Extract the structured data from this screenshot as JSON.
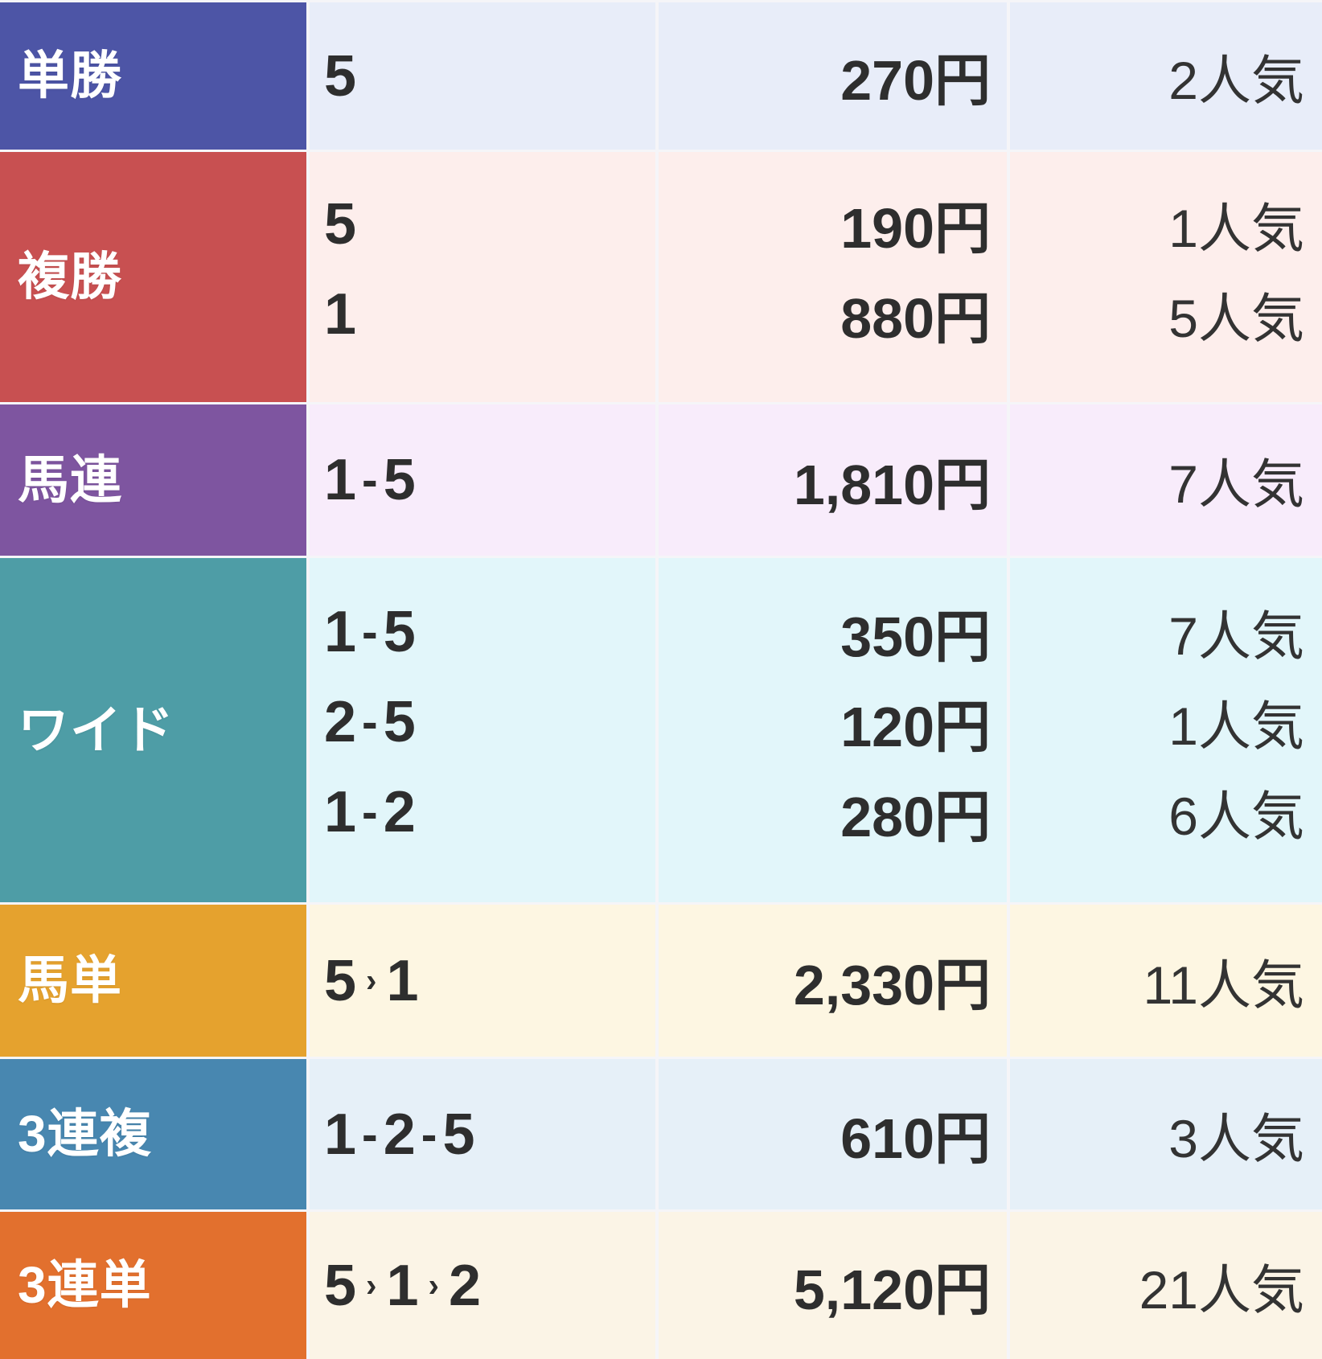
{
  "table": {
    "rows": [
      {
        "type": "単勝",
        "header_color": "#4d55a6",
        "cell_color": "#e8edf9",
        "entries": [
          {
            "combo": "5",
            "payout": "270円",
            "popularity": "2人気"
          }
        ]
      },
      {
        "type": "複勝",
        "header_color": "#c85051",
        "cell_color": "#fdeeec",
        "entries": [
          {
            "combo": "5",
            "payout": "190円",
            "popularity": "1人気"
          },
          {
            "combo": "1",
            "payout": "880円",
            "popularity": "5人気"
          }
        ]
      },
      {
        "type": "馬連",
        "header_color": "#7e55a0",
        "cell_color": "#f8ecfb",
        "entries": [
          {
            "combo": "1-5",
            "payout": "1,810円",
            "popularity": "7人気"
          }
        ]
      },
      {
        "type": "ワイド",
        "header_color": "#4e9da6",
        "cell_color": "#e2f6fa",
        "entries": [
          {
            "combo": "1-5",
            "payout": "350円",
            "popularity": "7人気"
          },
          {
            "combo": "2-5",
            "payout": "120円",
            "popularity": "1人気"
          },
          {
            "combo": "1-2",
            "payout": "280円",
            "popularity": "6人気"
          }
        ]
      },
      {
        "type": "馬単",
        "header_color": "#e5a22e",
        "cell_color": "#fdf6e2",
        "entries": [
          {
            "combo": "5>1",
            "payout": "2,330円",
            "popularity": "11人気"
          }
        ]
      },
      {
        "type": "3連複",
        "header_color": "#4887b0",
        "cell_color": "#e6f0f8",
        "entries": [
          {
            "combo": "1-2-5",
            "payout": "610円",
            "popularity": "3人気"
          }
        ]
      },
      {
        "type": "3連単",
        "header_color": "#e2702e",
        "cell_color": "#fbf4e6",
        "entries": [
          {
            "combo": "5>1>2",
            "payout": "5,120円",
            "popularity": "21人気"
          }
        ]
      }
    ]
  }
}
